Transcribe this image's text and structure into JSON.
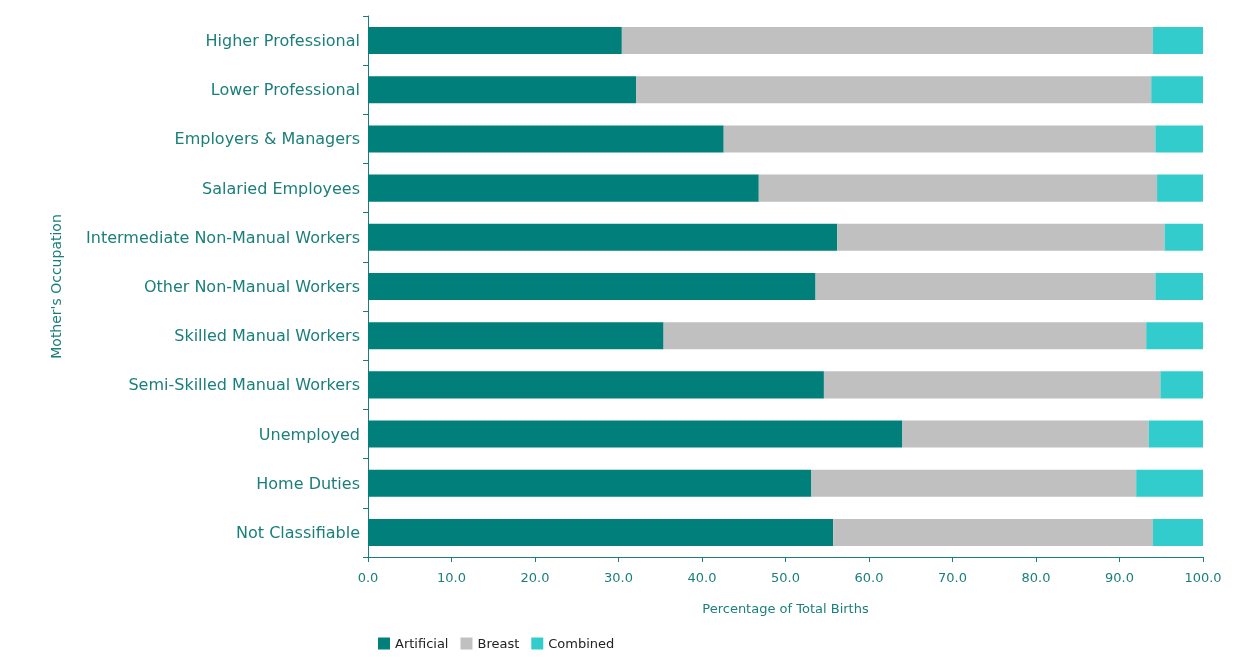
{
  "chart_data": {
    "type": "bar",
    "orientation": "horizontal",
    "stacked": true,
    "xlabel": "Percentage of Total Births",
    "ylabel": "Mother's Occupation",
    "categories": [
      "Higher Professional",
      "Lower Professional",
      "Employers & Managers",
      "Salaried Employees",
      "Intermediate Non-Manual Workers",
      "Other Non-Manual Workers",
      "Skilled Manual Workers",
      "Semi-Skilled Manual Workers",
      "Unemployed",
      "Home Duties",
      "Not Classifiable"
    ],
    "series": [
      {
        "name": "Artificial",
        "color": "#007f7b",
        "values": [
          30.4,
          32.1,
          42.6,
          46.8,
          56.2,
          53.6,
          35.4,
          54.6,
          64.0,
          53.1,
          55.7
        ]
      },
      {
        "name": "Breast",
        "color": "#c0c0c0",
        "values": [
          63.6,
          61.7,
          51.7,
          47.7,
          39.2,
          40.7,
          57.8,
          40.3,
          29.5,
          38.9,
          38.3
        ]
      },
      {
        "name": "Combined",
        "color": "#33cccc",
        "values": [
          6.0,
          6.2,
          5.7,
          5.5,
          4.6,
          5.7,
          6.8,
          5.1,
          6.5,
          8.0,
          6.0
        ]
      }
    ],
    "xlim": [
      0,
      100
    ],
    "xticks": [
      {
        "value": 0,
        "label": "0.0"
      },
      {
        "value": 10,
        "label": "10.0"
      },
      {
        "value": 20,
        "label": "20.0"
      },
      {
        "value": 30,
        "label": "30.0"
      },
      {
        "value": 40,
        "label": "40.0"
      },
      {
        "value": 50,
        "label": "50.0"
      },
      {
        "value": 60,
        "label": "60.0"
      },
      {
        "value": 70,
        "label": "70.0"
      },
      {
        "value": 80,
        "label": "80.0"
      },
      {
        "value": 90,
        "label": "90.0"
      },
      {
        "value": 100,
        "label": "100.0"
      }
    ],
    "grid": false,
    "legend": "bottom left"
  }
}
